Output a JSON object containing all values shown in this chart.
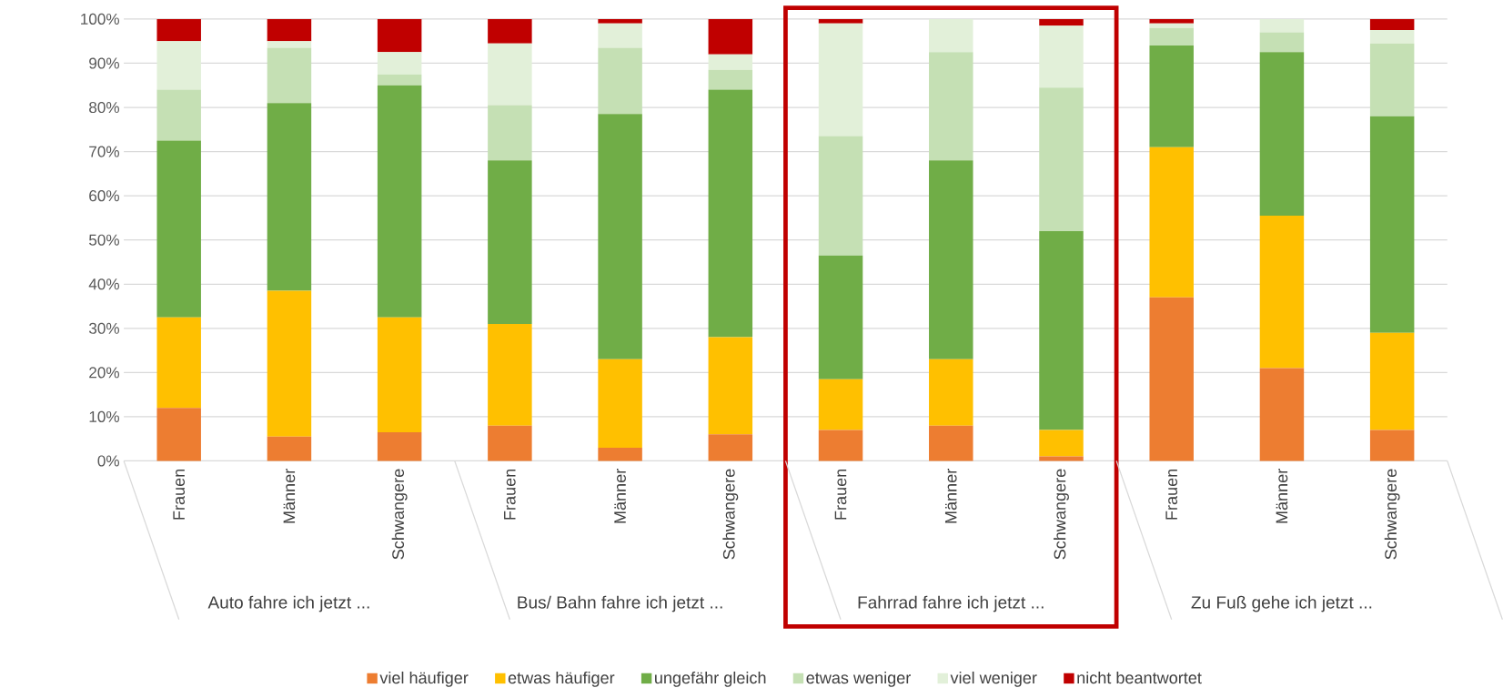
{
  "chart_data": {
    "type": "bar",
    "stacked": true,
    "categories": [
      "Frauen",
      "Männer",
      "Schwangere",
      "Frauen",
      "Männer",
      "Schwangere",
      "Frauen",
      "Männer",
      "Schwangere",
      "Frauen",
      "Männer",
      "Schwangere"
    ],
    "series": [
      {
        "name": "viel häufiger",
        "color": "#ed7d31",
        "values": [
          12,
          5.5,
          6.5,
          8,
          3,
          6,
          7,
          8,
          1,
          37,
          21,
          7
        ]
      },
      {
        "name": "etwas häufiger",
        "color": "#ffc000",
        "values": [
          20.5,
          33,
          26,
          23,
          20,
          22,
          11.5,
          15,
          6,
          34,
          34.5,
          22
        ]
      },
      {
        "name": "ungefähr gleich",
        "color": "#70ad47",
        "values": [
          40,
          42.5,
          52.5,
          37,
          55.5,
          56,
          28,
          45,
          45,
          23,
          37,
          49
        ]
      },
      {
        "name": "etwas weniger",
        "color": "#c5e0b4",
        "values": [
          11.5,
          12.5,
          2.5,
          12.5,
          15,
          4.5,
          27,
          24.5,
          32.5,
          4,
          4.5,
          16.5
        ]
      },
      {
        "name": "viel weniger",
        "color": "#e2f0d9",
        "values": [
          11,
          1.5,
          5,
          14,
          5.5,
          3.5,
          25.5,
          7.5,
          14,
          1,
          3,
          3
        ]
      },
      {
        "name": "nicht beantwortet",
        "color": "#c00000",
        "values": [
          5,
          5,
          7.5,
          5.5,
          1,
          8,
          1,
          0,
          1.5,
          1,
          0,
          2.5
        ]
      }
    ],
    "ylim": [
      0,
      100
    ],
    "yticks": [
      {
        "value": 0,
        "label": "0%"
      },
      {
        "value": 10,
        "label": "10%"
      },
      {
        "value": 20,
        "label": "20%"
      },
      {
        "value": 30,
        "label": "30%"
      },
      {
        "value": 40,
        "label": "40%"
      },
      {
        "value": 50,
        "label": "50%"
      },
      {
        "value": 60,
        "label": "60%"
      },
      {
        "value": 70,
        "label": "70%"
      },
      {
        "value": 80,
        "label": "80%"
      },
      {
        "value": 90,
        "label": "90%"
      },
      {
        "value": 100,
        "label": "100%"
      }
    ],
    "annotations": [
      "Auto fahre ich jetzt ...",
      "Bus/ Bahn fahre ich jetzt ...",
      "Fahrrad fahre ich jetzt ...",
      "Zu Fuß gehe ich jetzt ..."
    ],
    "grid": "y",
    "legend": "bottom"
  }
}
